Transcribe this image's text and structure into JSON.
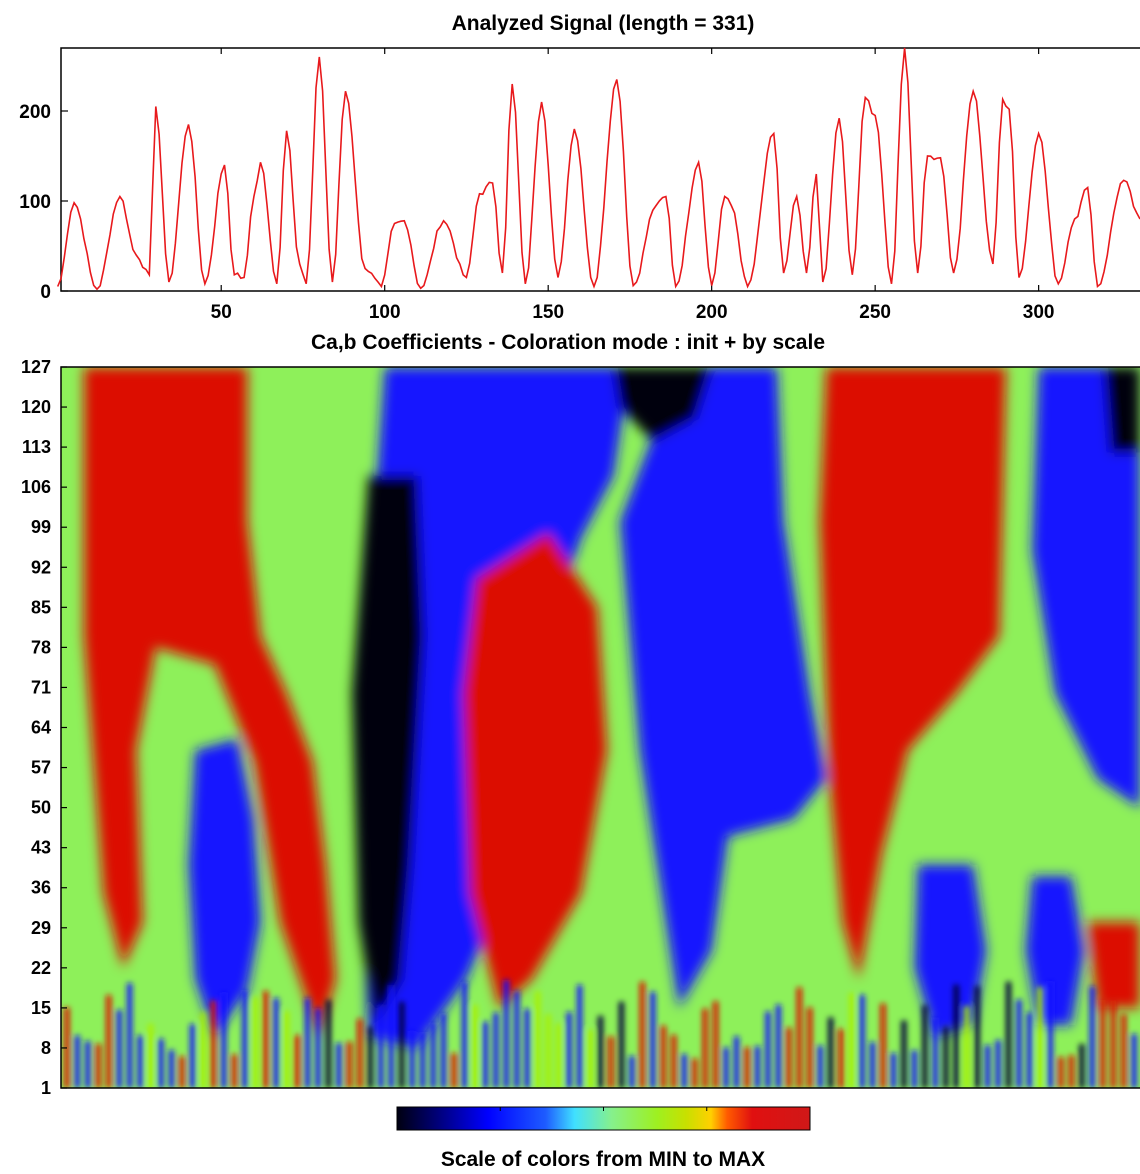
{
  "chart_data": [
    {
      "type": "line",
      "title": "Analyzed Signal  (length = 331)",
      "xlabel": "",
      "ylabel": "",
      "xlim": [
        1,
        331
      ],
      "ylim": [
        0,
        270
      ],
      "xticks": [
        50,
        100,
        150,
        200,
        250,
        300
      ],
      "yticks": [
        0,
        100,
        200
      ],
      "color": "#e8191c",
      "grid": false,
      "peaks": [
        [
          0,
          5
        ],
        [
          5,
          98
        ],
        [
          12,
          2
        ],
        [
          19,
          105
        ],
        [
          24,
          40
        ],
        [
          28,
          18
        ],
        [
          30,
          205
        ],
        [
          34,
          10
        ],
        [
          40,
          185
        ],
        [
          45,
          8
        ],
        [
          51,
          140
        ],
        [
          54,
          18
        ],
        [
          57,
          15
        ],
        [
          60,
          105
        ],
        [
          62,
          143
        ],
        [
          67,
          8
        ],
        [
          70,
          178
        ],
        [
          74,
          30
        ],
        [
          76,
          8
        ],
        [
          80,
          260
        ],
        [
          84,
          10
        ],
        [
          88,
          222
        ],
        [
          94,
          25
        ],
        [
          99,
          5
        ],
        [
          103,
          75
        ],
        [
          106,
          78
        ],
        [
          111,
          3
        ],
        [
          118,
          78
        ],
        [
          125,
          15
        ],
        [
          129,
          108
        ],
        [
          133,
          120
        ],
        [
          136,
          20
        ],
        [
          139,
          230
        ],
        [
          143,
          8
        ],
        [
          148,
          210
        ],
        [
          153,
          15
        ],
        [
          158,
          180
        ],
        [
          164,
          5
        ],
        [
          171,
          235
        ],
        [
          176,
          6
        ],
        [
          183,
          95
        ],
        [
          186,
          105
        ],
        [
          189,
          5
        ],
        [
          196,
          143
        ],
        [
          200,
          6
        ],
        [
          204,
          105
        ],
        [
          206,
          95
        ],
        [
          211,
          5
        ],
        [
          219,
          175
        ],
        [
          222,
          20
        ],
        [
          226,
          105
        ],
        [
          229,
          20
        ],
        [
          232,
          130
        ],
        [
          234,
          10
        ],
        [
          239,
          192
        ],
        [
          243,
          18
        ],
        [
          247,
          215
        ],
        [
          250,
          195
        ],
        [
          255,
          8
        ],
        [
          259,
          270
        ],
        [
          263,
          20
        ],
        [
          266,
          150
        ],
        [
          270,
          148
        ],
        [
          274,
          20
        ],
        [
          280,
          222
        ],
        [
          286,
          30
        ],
        [
          289,
          213
        ],
        [
          291,
          202
        ],
        [
          294,
          15
        ],
        [
          300,
          175
        ],
        [
          306,
          8
        ],
        [
          311,
          80
        ],
        [
          315,
          115
        ],
        [
          318,
          5
        ],
        [
          326,
          123
        ],
        [
          331,
          80
        ]
      ]
    },
    {
      "type": "heatmap",
      "title": "Ca,b Coefficients  - Coloration mode : init + by scale",
      "xlabel": "",
      "ylabel": "",
      "xlim": [
        1,
        331
      ],
      "ylim": [
        1,
        127
      ],
      "yticks": [
        1,
        8,
        15,
        22,
        29,
        36,
        43,
        50,
        57,
        64,
        71,
        78,
        85,
        92,
        99,
        106,
        113,
        120,
        127
      ],
      "colormap": [
        "#000008",
        "#00003a",
        "#0000d8",
        "#1414ff",
        "#2a90ff",
        "#55e8e8",
        "#8ef05a",
        "#a8f000",
        "#c8d800",
        "#ffe000",
        "#ff5000",
        "#dc1000",
        "#cc1010"
      ],
      "regions": [
        {
          "value": 0.93,
          "x": [
            18,
            55
          ],
          "y": [
            72,
            127
          ],
          "note": "red"
        },
        {
          "value": 0.93,
          "x": [
            14,
            28
          ],
          "y": [
            22,
            70
          ],
          "note": "red"
        },
        {
          "value": 0.93,
          "x": [
            40,
            85
          ],
          "y": [
            38,
            127
          ],
          "note": "red"
        },
        {
          "value": 0.02,
          "x": [
            93,
            112
          ],
          "y": [
            12,
            108
          ],
          "note": "black"
        },
        {
          "value": 0.93,
          "x": [
            125,
            170
          ],
          "y": [
            14,
            97
          ],
          "note": "red"
        },
        {
          "value": 0.93,
          "x": [
            240,
            290
          ],
          "y": [
            42,
            127
          ],
          "note": "red"
        },
        {
          "value": 0.02,
          "x": [
            170,
            200
          ],
          "y": [
            118,
            127
          ],
          "note": "black"
        },
        {
          "value": 0.02,
          "x": [
            320,
            331
          ],
          "y": [
            115,
            127
          ],
          "note": "black"
        }
      ]
    }
  ],
  "colorbar": {
    "label": "Scale of colors from MIN to MAX",
    "ticks": 5
  }
}
